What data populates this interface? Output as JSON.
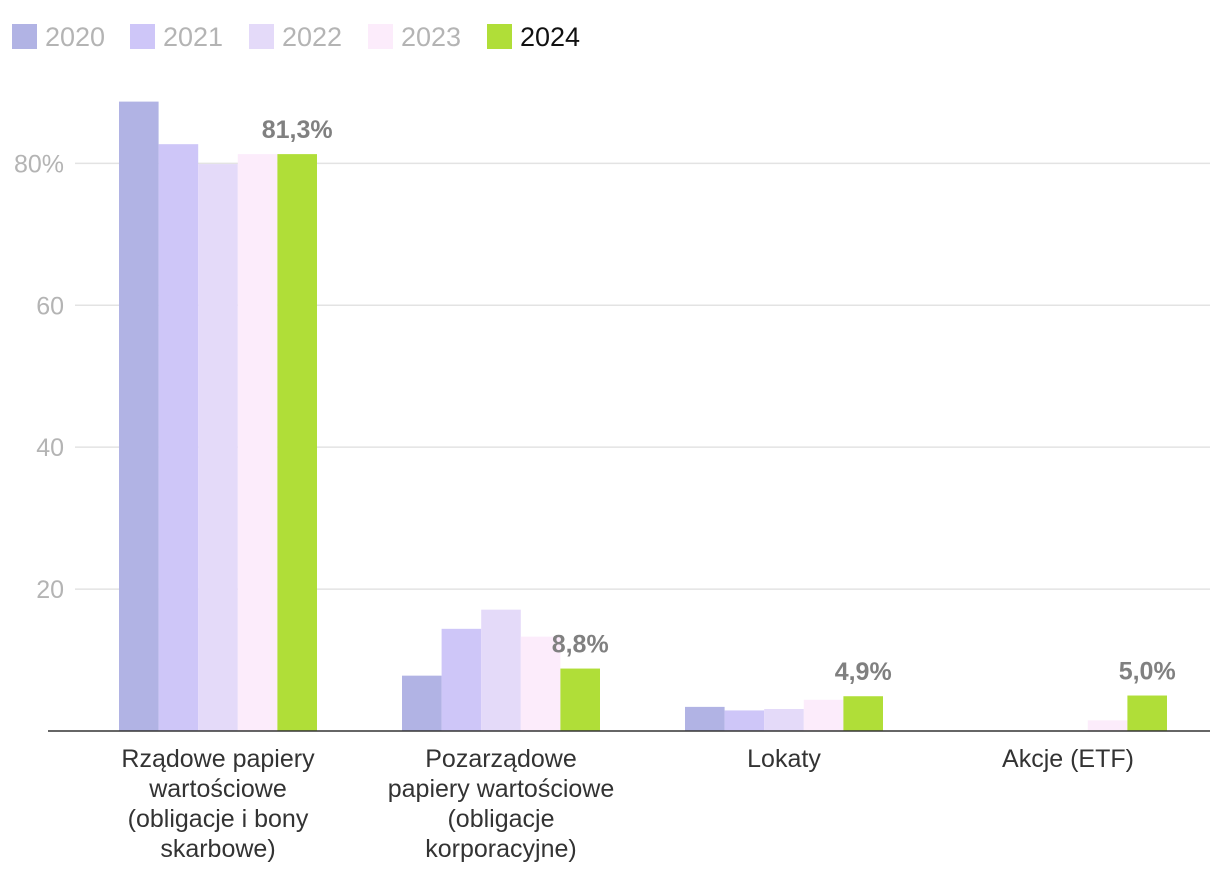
{
  "chart_data": {
    "type": "bar",
    "categories": [
      [
        "Rządowe papiery",
        "wartościowe",
        "(obligacje i bony",
        "skarbowe)"
      ],
      [
        "Pozarządowe",
        "papiery wartościowe",
        "(obligacje",
        "korporacyjne)"
      ],
      [
        "Lokaty"
      ],
      [
        "Akcje (ETF)"
      ]
    ],
    "series": [
      {
        "name": "2020",
        "color": "#b1b3e4",
        "values": [
          88.7,
          7.8,
          3.4,
          0
        ]
      },
      {
        "name": "2021",
        "color": "#cec6f8",
        "values": [
          82.7,
          14.4,
          2.9,
          0
        ]
      },
      {
        "name": "2022",
        "color": "#e4daf9",
        "values": [
          79.9,
          17.1,
          3.1,
          0
        ]
      },
      {
        "name": "2023",
        "color": "#fcecfb",
        "values": [
          81.3,
          13.3,
          4.4,
          1.5
        ]
      },
      {
        "name": "2024",
        "color": "#b0de38",
        "values": [
          81.3,
          8.8,
          4.9,
          5.0
        ]
      }
    ],
    "legend_text_colors": [
      "#b4b4b4",
      "#b4b4b4",
      "#b4b4b4",
      "#b4b4b4",
      "#111111"
    ],
    "data_labels": [
      "81,3%",
      "8,8%",
      "4,9%",
      "5,0%"
    ],
    "yticks": [
      {
        "value": 20,
        "label": "20"
      },
      {
        "value": 40,
        "label": "40"
      },
      {
        "value": 60,
        "label": "60"
      },
      {
        "value": 80,
        "label": "80%"
      }
    ],
    "ylim": [
      0,
      94
    ],
    "grid": true,
    "legend_position": "top-left",
    "title": "",
    "xlabel": "",
    "ylabel": ""
  }
}
